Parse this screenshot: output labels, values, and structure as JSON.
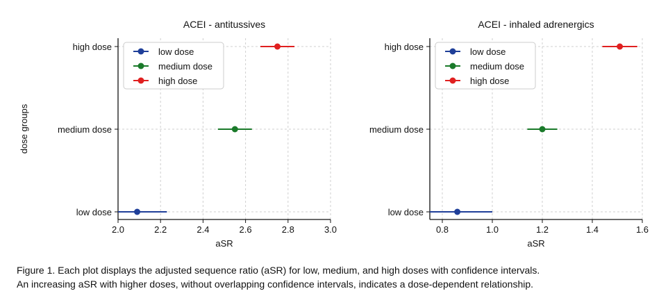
{
  "chart_data": [
    {
      "type": "scatter",
      "title": "ACEI - antitussives",
      "xlabel": "aSR",
      "ylabel": "dose groups",
      "xlim": [
        2.0,
        3.0
      ],
      "xticks": [
        "2.0",
        "2.2",
        "2.4",
        "2.6",
        "2.8",
        "3.0"
      ],
      "categories": [
        "low dose",
        "medium dose",
        "high dose"
      ],
      "series": [
        {
          "name": "low dose",
          "category": "low dose",
          "estimate": 2.09,
          "ci": [
            1.99,
            2.23
          ],
          "color": "#1f3f99"
        },
        {
          "name": "medium dose",
          "category": "medium dose",
          "estimate": 2.55,
          "ci": [
            2.47,
            2.63
          ],
          "color": "#1a7a2a"
        },
        {
          "name": "high dose",
          "category": "high dose",
          "estimate": 2.75,
          "ci": [
            2.67,
            2.83
          ],
          "color": "#e02020"
        }
      ],
      "grid": true,
      "legend_position": "top-left"
    },
    {
      "type": "scatter",
      "title": "ACEI - inhaled adrenergics",
      "xlabel": "aSR",
      "ylabel": "",
      "xlim": [
        0.75,
        1.6
      ],
      "xticks": [
        "0.8",
        "1.0",
        "1.2",
        "1.4",
        "1.6"
      ],
      "categories": [
        "low dose",
        "medium dose",
        "high dose"
      ],
      "series": [
        {
          "name": "low dose",
          "category": "low dose",
          "estimate": 0.86,
          "ci": [
            0.74,
            1.0
          ],
          "color": "#1f3f99"
        },
        {
          "name": "medium dose",
          "category": "medium dose",
          "estimate": 1.2,
          "ci": [
            1.14,
            1.26
          ],
          "color": "#1a7a2a"
        },
        {
          "name": "high dose",
          "category": "high dose",
          "estimate": 1.51,
          "ci": [
            1.44,
            1.58
          ],
          "color": "#e02020"
        }
      ],
      "grid": true,
      "legend_position": "top-left"
    }
  ],
  "caption": {
    "line1": "Figure 1. Each plot displays the adjusted sequence ratio (aSR) for low, medium, and high doses with confidence intervals.",
    "line2": "An increasing aSR with higher doses, without overlapping confidence intervals, indicates a dose-dependent relationship."
  }
}
